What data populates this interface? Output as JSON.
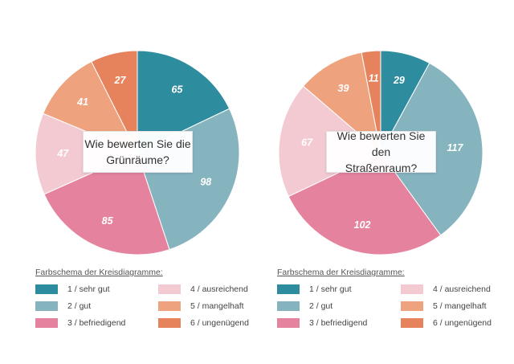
{
  "colors": {
    "1": "#2e8c9f",
    "2": "#85b4bf",
    "3": "#e5839f",
    "4": "#f4cad2",
    "5": "#eea27d",
    "6": "#e6835d"
  },
  "chart_data": [
    {
      "type": "pie",
      "title": "Wie bewerten Sie die Grünräume?",
      "title_lines": [
        "Wie bewerten Sie die",
        "Grünräume?"
      ],
      "categories": [
        "1 / sehr gut",
        "2 / gut",
        "3 / befriedigend",
        "4 / ausreichend",
        "5 / mangelhaft",
        "6 / ungenügend"
      ],
      "values": [
        65,
        98,
        85,
        47,
        41,
        27
      ],
      "value_labels": [
        "65",
        "98",
        "85",
        "47",
        "41",
        "27"
      ]
    },
    {
      "type": "pie",
      "title": "Wie bewerten Sie den Straßenraum?",
      "title_lines": [
        "Wie bewerten Sie den",
        "Straßenraum?"
      ],
      "categories": [
        "1 / sehr gut",
        "2 / gut",
        "3 / befriedigend",
        "4 / ausreichend",
        "5 / mangelhaft",
        "6 / ungenügend"
      ],
      "values": [
        29,
        117,
        102,
        67,
        39,
        11
      ],
      "value_labels": [
        "29",
        "117",
        "102",
        "67",
        "39",
        "11"
      ]
    }
  ],
  "legends": [
    {
      "title": "Farbschema der Kreisdiagramme:",
      "items": [
        "1 / sehr gut",
        "2 / gut",
        "3 / befriedigend",
        "4 / ausreichend",
        "5 / mangelhaft",
        "6 / ungenügend"
      ]
    },
    {
      "title": "Farbschema der Kreisdiagramme:",
      "items": [
        "1 / sehr gut",
        "2 / gut",
        "3 / befriedigend",
        "4 / ausreichend",
        "5 / mangelhaft",
        "6 / ungenügend"
      ]
    }
  ]
}
